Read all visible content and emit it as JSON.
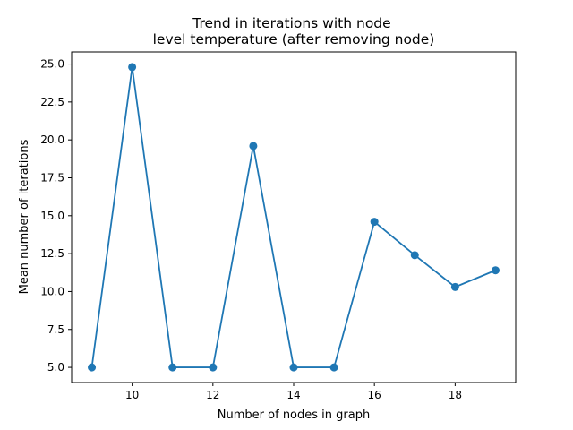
{
  "chart_data": {
    "type": "line",
    "title_lines": [
      "Trend in iterations with node",
      "level temperature (after removing node)"
    ],
    "xlabel": "Number of nodes in graph",
    "ylabel": "Mean number of iterations",
    "x": [
      9,
      10,
      11,
      12,
      13,
      14,
      15,
      16,
      17,
      18,
      19
    ],
    "series": [
      {
        "values": [
          5.0,
          24.8,
          5.0,
          5.0,
          19.6,
          5.0,
          5.0,
          14.6,
          12.4,
          10.3,
          11.4
        ],
        "color": "#1f77b4"
      }
    ],
    "xlim": [
      8.5,
      19.5
    ],
    "ylim": [
      4.0,
      25.8
    ],
    "xticks": [
      "10",
      "12",
      "14",
      "16",
      "18"
    ],
    "yticks": [
      "5.0",
      "7.5",
      "10.0",
      "12.5",
      "15.0",
      "17.5",
      "20.0",
      "22.5",
      "25.0"
    ],
    "grid": false,
    "marker": "circle"
  }
}
